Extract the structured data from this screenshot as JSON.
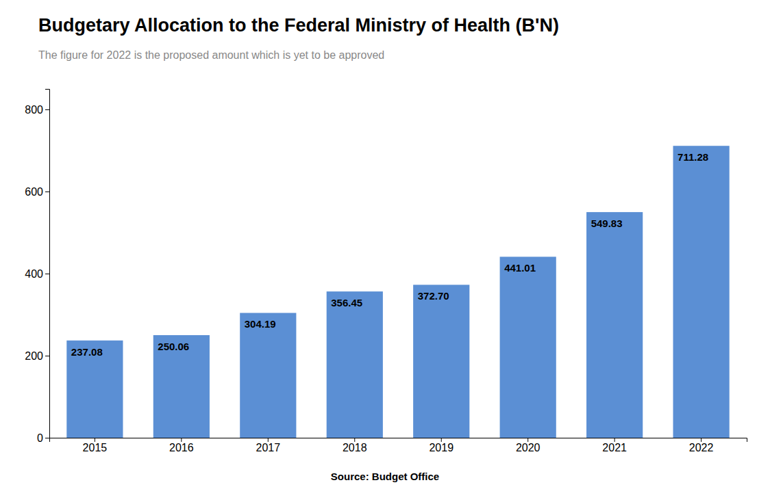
{
  "chart_data": {
    "type": "bar",
    "title": "Budgetary Allocation to the Federal Ministry of Health (B'N)",
    "subtitle": "The figure for 2022 is the proposed amount which is yet to be approved",
    "annotations": [
      "Source: Budget Office"
    ],
    "categories": [
      "2015",
      "2016",
      "2017",
      "2018",
      "2019",
      "2020",
      "2021",
      "2022"
    ],
    "values": [
      237.08,
      250.06,
      304.19,
      356.45,
      372.7,
      441.01,
      549.83,
      711.28
    ],
    "value_labels": [
      "237.08",
      "250.06",
      "304.19",
      "356.45",
      "372.70",
      "441.01",
      "549.83",
      "711.28"
    ],
    "data_labels": true,
    "color": "#5B8FD4",
    "ylim": [
      0,
      850
    ],
    "yticks": [
      0,
      200,
      400,
      600,
      800
    ],
    "grid": false
  }
}
